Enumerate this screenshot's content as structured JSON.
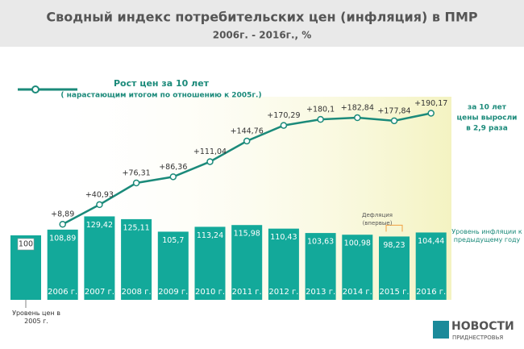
{
  "chart_data": {
    "type": "bar",
    "title": "Сводный индекс потребительских цен (инфляция) в ПМР",
    "subtitle": "2006г. - 2016г., %",
    "categories": [
      null,
      "2006 г.",
      "2007 г.",
      "2008 г.",
      "2009 г.",
      "2010 г.",
      "2011 г.",
      "2012 г.",
      "2013 г.",
      "2014 г.",
      "2015 г.",
      "2016 г."
    ],
    "series": [
      {
        "name": "Уровень инфляции к предыдущему году",
        "type": "bar",
        "color": "#13a99a",
        "values": [
          100,
          108.89,
          129.42,
          125.11,
          105.7,
          113.24,
          115.98,
          110.43,
          103.63,
          100.98,
          98.23,
          104.44
        ],
        "value_labels": [
          "100",
          "108,89",
          "129,42",
          "125,11",
          "105,7",
          "113,24",
          "115,98",
          "110,43",
          "103,63",
          "100,98",
          "98,23",
          "104,44"
        ]
      },
      {
        "name": "Рост цен за 10 лет",
        "type": "line",
        "color": "#1b8a7a",
        "values": [
          null,
          8.89,
          40.93,
          76.31,
          86.36,
          111.04,
          144.76,
          170.29,
          180.1,
          182.84,
          177.84,
          190.17
        ],
        "value_labels": [
          null,
          "+8,89",
          "+40,93",
          "+76,31",
          "+86,36",
          "+111,04",
          "+144,76",
          "+170,29",
          "+180,1",
          "+182,84",
          "+177,84",
          "+190,17"
        ]
      }
    ],
    "legend_note": "( нарастающим итогом по отношению к 2005г.)",
    "base_note": "Уровень цен в 2005 г.",
    "deflation_note": "Дефляция (впервые)",
    "summary": [
      "за 10 лет",
      "цены выросли",
      "в 2,9 раза"
    ],
    "source": {
      "name": "НОВОСТИ",
      "sub": "ПРИДНЕСТРОВЬЯ"
    }
  }
}
